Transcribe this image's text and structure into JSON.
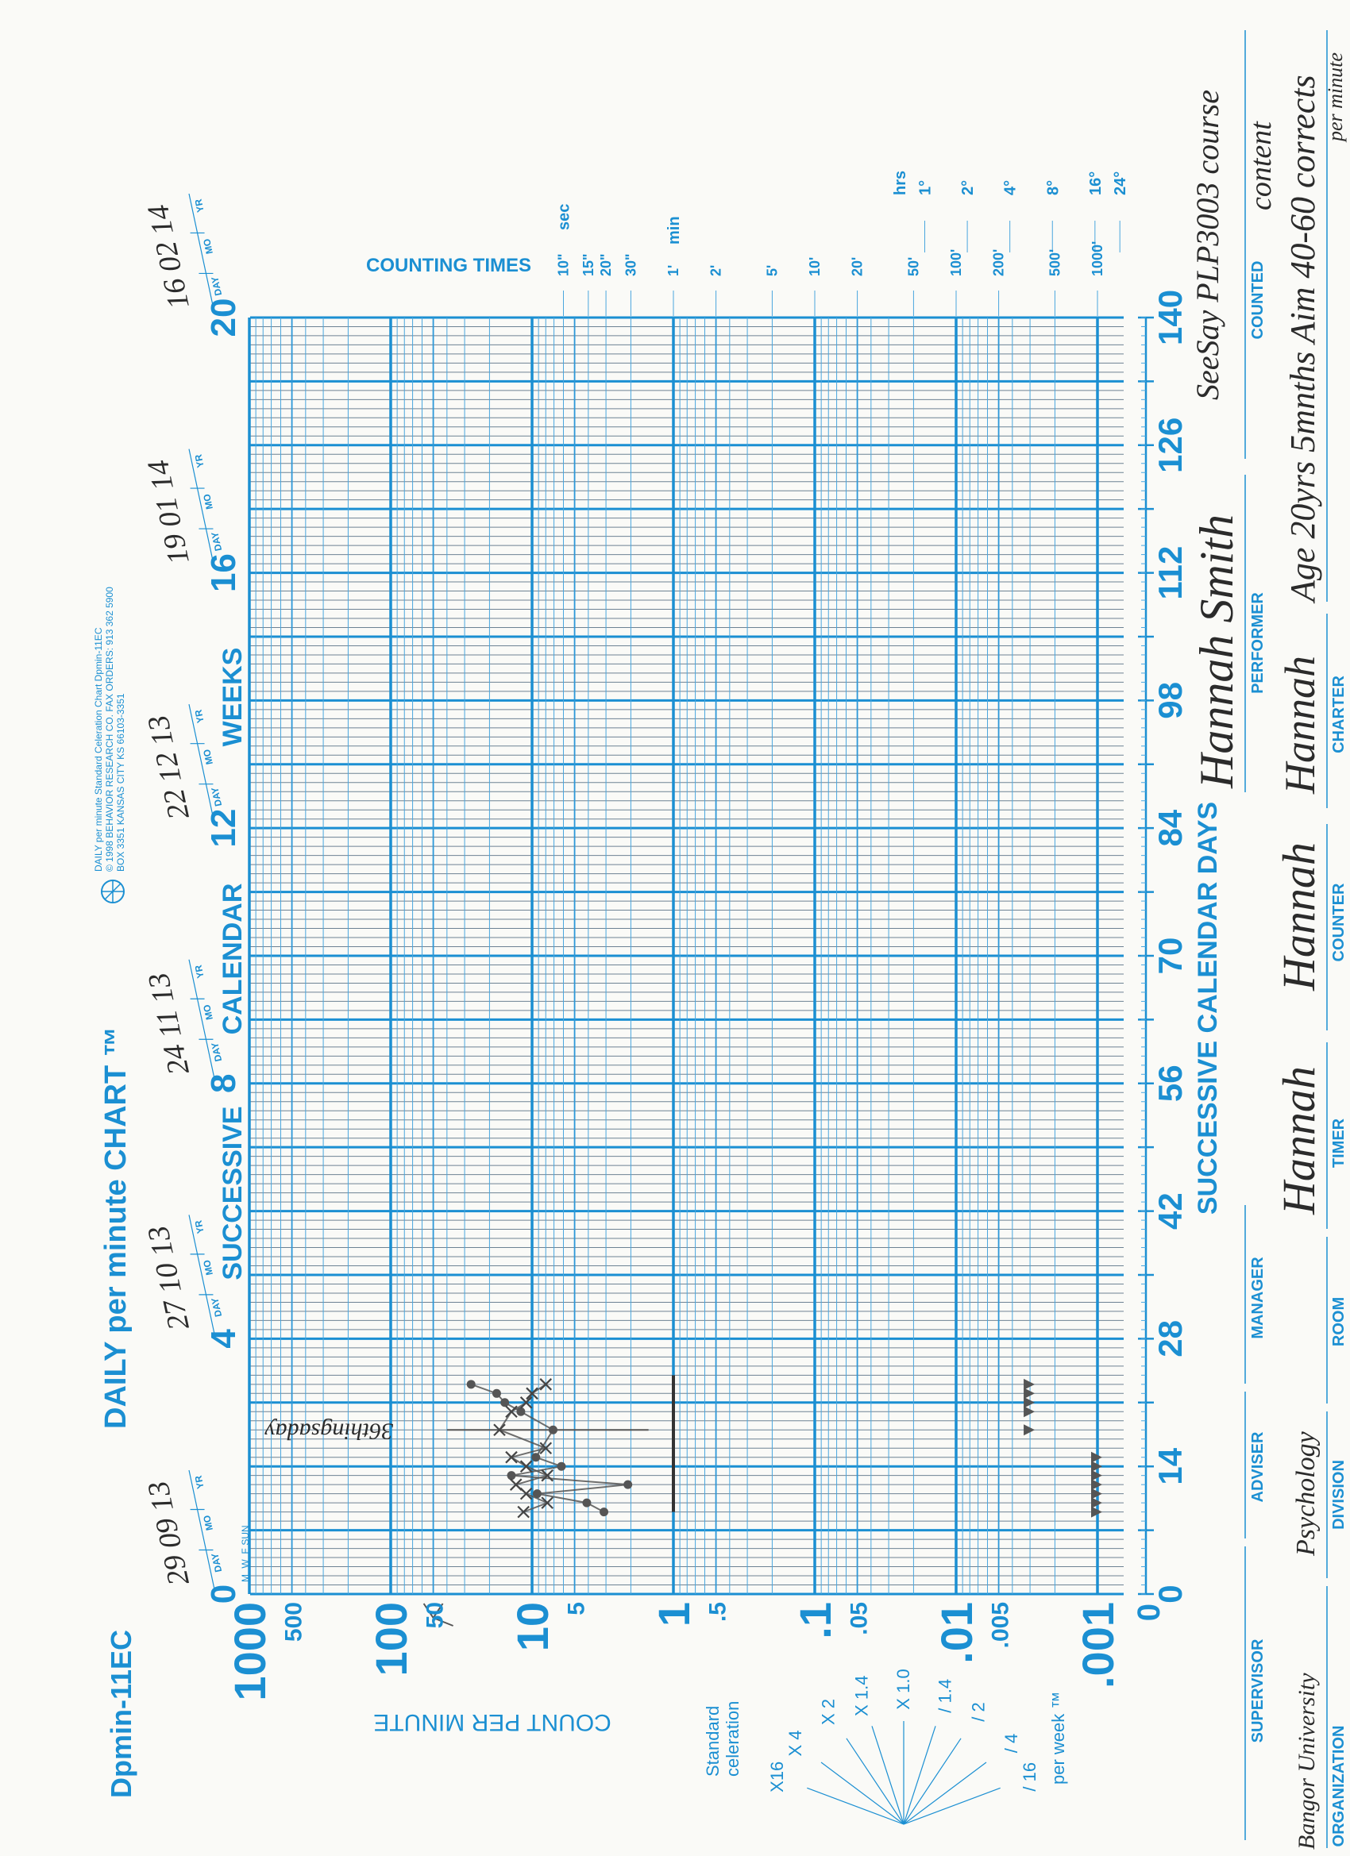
{
  "header": {
    "form_code": "Dpmin-11EC",
    "title": "DAILY per minute CHART ™",
    "publisher_lines": [
      "DAILY per minute Standard Celeration Chart    Dpmin-11EC",
      "© 1998 BEHAVIOR RESEARCH CO. FAX ORDERS: 913 362 5900",
      "BOX 3351 KANSAS CITY KS 66103-3351"
    ],
    "logo_icon": "behavior-research-logo"
  },
  "colors": {
    "chart_blue": "#1b8fd2",
    "pen": "#555555",
    "paper": "#fafaf7"
  },
  "chart_data": {
    "type": "scatter",
    "xlabel": "SUCCESSIVE CALENDAR DAYS",
    "x_top_label": [
      "SUCCESSIVE",
      "CALENDAR",
      "WEEKS"
    ],
    "ylabel": "COUNT PER MINUTE",
    "xlim": [
      0,
      140
    ],
    "ylim": [
      0.001,
      1000
    ],
    "yscale": "log",
    "grid": true,
    "x_ticks": [
      0,
      14,
      28,
      42,
      56,
      70,
      84,
      98,
      112,
      126,
      140
    ],
    "x_top_ticks": [
      0,
      4,
      8,
      12,
      16,
      20
    ],
    "y_ticks": [
      {
        "value": 1000,
        "label": "1000",
        "major": true
      },
      {
        "value": 500,
        "label": "500",
        "major": false
      },
      {
        "value": 100,
        "label": "100",
        "major": true
      },
      {
        "value": 50,
        "label": "50",
        "major": false
      },
      {
        "value": 10,
        "label": "10",
        "major": true
      },
      {
        "value": 5,
        "label": "5",
        "major": false
      },
      {
        "value": 1,
        "label": "1",
        "major": true
      },
      {
        "value": 0.5,
        "label": ".5",
        "major": false
      },
      {
        "value": 0.1,
        "label": ".1",
        "major": true
      },
      {
        "value": 0.05,
        "label": ".05",
        "major": false
      },
      {
        "value": 0.01,
        "label": ".01",
        "major": true
      },
      {
        "value": 0.005,
        "label": ".005",
        "major": false
      },
      {
        "value": 0.001,
        "label": ".001",
        "major": true
      }
    ],
    "zero_label": "0",
    "weekday_labels": [
      "M",
      "W",
      "F",
      "SUN"
    ],
    "date_tag_labels": [
      "DAY",
      "MO",
      "YR"
    ],
    "date_tags": [
      {
        "week": 0,
        "date": "29 09 13"
      },
      {
        "week": 4,
        "date": "27 10 13"
      },
      {
        "week": 8,
        "date": "24 11 13"
      },
      {
        "week": 12,
        "date": "22 12 13"
      },
      {
        "week": 16,
        "date": "19 01 14"
      },
      {
        "week": 20,
        "date": "16 02 14"
      }
    ],
    "counting_times": {
      "title": "COUNTING TIMES",
      "units": {
        "sec": "sec",
        "min": "min",
        "hrs": "hrs"
      },
      "ticks": [
        {
          "label": "10\"",
          "count": 6
        },
        {
          "label": "15\"",
          "count": 4
        },
        {
          "label": "20\"",
          "count": 3
        },
        {
          "label": "30\"",
          "count": 2
        },
        {
          "label": "1'",
          "count": 1
        },
        {
          "label": "2'",
          "count": 0.5
        },
        {
          "label": "5'",
          "count": 0.2
        },
        {
          "label": "10'",
          "count": 0.1
        },
        {
          "label": "20'",
          "count": 0.05
        },
        {
          "label": "50'",
          "count": 0.02
        },
        {
          "label": "100'",
          "count": 0.01
        },
        {
          "label": "200'",
          "count": 0.005
        },
        {
          "label": "500'",
          "count": 0.002
        },
        {
          "label": "1000'",
          "count": 0.001
        }
      ],
      "hour_ticks": [
        {
          "label": "1°",
          "hours": 1
        },
        {
          "label": "2°",
          "hours": 2
        },
        {
          "label": "4°",
          "hours": 4
        },
        {
          "label": "8°",
          "hours": 8
        },
        {
          "label": "16°",
          "hours": 16
        },
        {
          "label": "24°",
          "hours": 24
        }
      ]
    },
    "series": [
      {
        "marker": "dot",
        "points": [
          [
            9,
            3.1
          ],
          [
            10,
            4.1
          ],
          [
            11,
            9.2
          ],
          [
            12,
            2.1
          ],
          [
            13,
            14
          ],
          [
            14,
            6.2
          ],
          [
            15,
            9.4
          ],
          [
            18,
            7.1
          ],
          [
            20,
            12
          ],
          [
            21,
            15.6
          ],
          [
            22,
            17.8
          ],
          [
            23,
            27
          ]
        ]
      },
      {
        "marker": "x",
        "points": [
          [
            9,
            11.5
          ],
          [
            10,
            7.8
          ],
          [
            11,
            11
          ],
          [
            12,
            13
          ],
          [
            13,
            7.8
          ],
          [
            14,
            11
          ],
          [
            15,
            14
          ],
          [
            16,
            8
          ],
          [
            18,
            17
          ],
          [
            20,
            14
          ],
          [
            21,
            11
          ],
          [
            22,
            10
          ],
          [
            23,
            8
          ]
        ]
      }
    ],
    "record_floors": [
      {
        "marker": "triangle",
        "count": 0.001,
        "days": [
          9,
          10,
          11,
          12,
          13,
          14,
          15
        ]
      },
      {
        "marker": "triangle",
        "count": 0.003,
        "days": [
          18,
          20,
          21,
          22,
          23
        ]
      }
    ],
    "drawn_lines": [
      {
        "count": 1,
        "day_start": 9,
        "day_end": 24
      }
    ],
    "annotations": [
      {
        "text": "36thingsaday",
        "day": 18,
        "count_from": 40,
        "count_to": 1.5
      }
    ],
    "aim_mark": {
      "count": 50
    },
    "celeration_fan": {
      "title": [
        "Standard",
        "celeration"
      ],
      "subtitle": "per week ™",
      "rays": [
        {
          "label": "X16",
          "factor": 16
        },
        {
          "label": "X 4",
          "factor": 4
        },
        {
          "label": "X 2",
          "factor": 2
        },
        {
          "label": "X 1.4",
          "factor": 1.4
        },
        {
          "label": "X 1.0",
          "factor": 1
        },
        {
          "label": "/ 1.4",
          "factor": 0.714
        },
        {
          "label": "/ 2",
          "factor": 0.5
        },
        {
          "label": "/ 4",
          "factor": 0.25
        },
        {
          "label": "/ 16",
          "factor": 0.0625
        }
      ]
    }
  },
  "fields": {
    "supervisor": {
      "label": "SUPERVISOR",
      "value": ""
    },
    "adviser": {
      "label": "ADVISER",
      "value": ""
    },
    "manager": {
      "label": "MANAGER",
      "value": ""
    },
    "performer": {
      "label": "PERFORMER",
      "value": "Hannah Smith"
    },
    "counted": {
      "label": "COUNTED",
      "value_lines": [
        "SeeSay PLP3003 course",
        "content"
      ]
    },
    "organization": {
      "label": "ORGANIZATION",
      "value": "Bangor University"
    },
    "division": {
      "label": "DIVISION",
      "value": "Psychology"
    },
    "room": {
      "label": "ROOM",
      "value": ""
    },
    "timer": {
      "label": "TIMER",
      "value": "Hannah"
    },
    "counter": {
      "label": "COUNTER",
      "value": "Hannah"
    },
    "charter": {
      "label": "CHARTER",
      "value": "Hannah"
    },
    "notes": {
      "value_lines": [
        "Age 20yrs 5mnths Aim 40-60 corrects",
        "per minute"
      ]
    }
  }
}
